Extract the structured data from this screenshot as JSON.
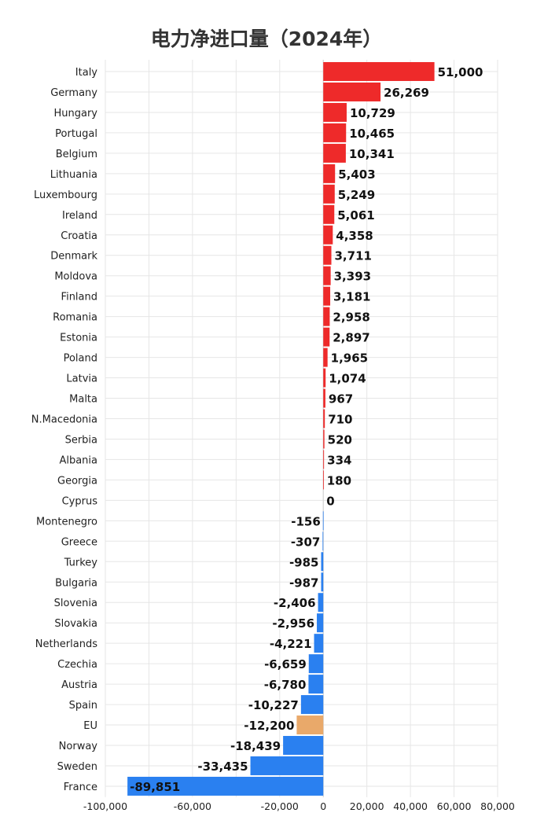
{
  "chart_data": {
    "type": "bar",
    "orientation": "horizontal",
    "title": "电力净进口量（2024年）",
    "xlabel": "",
    "ylabel": "",
    "xlim": [
      -100000,
      80000
    ],
    "xticks": [
      -100000,
      -80000,
      -60000,
      -40000,
      -20000,
      0,
      20000,
      40000,
      60000,
      80000
    ],
    "xtick_labels": [
      "-100,000",
      "",
      "-60,000",
      "",
      "-20,000",
      "0",
      "20,000",
      "40,000",
      "60,000",
      "80,000"
    ],
    "categories": [
      "Italy",
      "Germany",
      "Hungary",
      "Portugal",
      "Belgium",
      "Lithuania",
      "Luxembourg",
      "Ireland",
      "Croatia",
      "Denmark",
      "Moldova",
      "Finland",
      "Romania",
      "Estonia",
      "Poland",
      "Latvia",
      "Malta",
      "N.Macedonia",
      "Serbia",
      "Albania",
      "Georgia",
      "Cyprus",
      "Montenegro",
      "Greece",
      "Turkey",
      "Bulgaria",
      "Slovenia",
      "Slovakia",
      "Netherlands",
      "Czechia",
      "Austria",
      "Spain",
      "EU",
      "Norway",
      "Sweden",
      "France"
    ],
    "values": [
      51000,
      26269,
      10729,
      10465,
      10341,
      5403,
      5249,
      5061,
      4358,
      3711,
      3393,
      3181,
      2958,
      2897,
      1965,
      1074,
      967,
      710,
      520,
      334,
      180,
      0,
      -156,
      -307,
      -985,
      -987,
      -2406,
      -2956,
      -4221,
      -6659,
      -6780,
      -10227,
      -12200,
      -18439,
      -33435,
      -89851
    ],
    "value_labels": [
      "51,000",
      "26,269",
      "10,729",
      "10,465",
      "10,341",
      "5,403",
      "5,249",
      "5,061",
      "4,358",
      "3,711",
      "3,393",
      "3,181",
      "2,958",
      "2,897",
      "1,965",
      "1,074",
      "967",
      "710",
      "520",
      "334",
      "180",
      "0",
      "-156",
      "-307",
      "-985",
      "-987",
      "-2,406",
      "-2,956",
      "-4,221",
      "-6,659",
      "-6,780",
      "-10,227",
      "-12,200",
      "-18,439",
      "-33,435",
      "-89,851"
    ],
    "colors": {
      "positive": "#ee2a2a",
      "negative": "#2a80f0",
      "highlight": "#e9a96a",
      "highlight_category": "EU"
    },
    "grid": true,
    "legend": "none"
  }
}
